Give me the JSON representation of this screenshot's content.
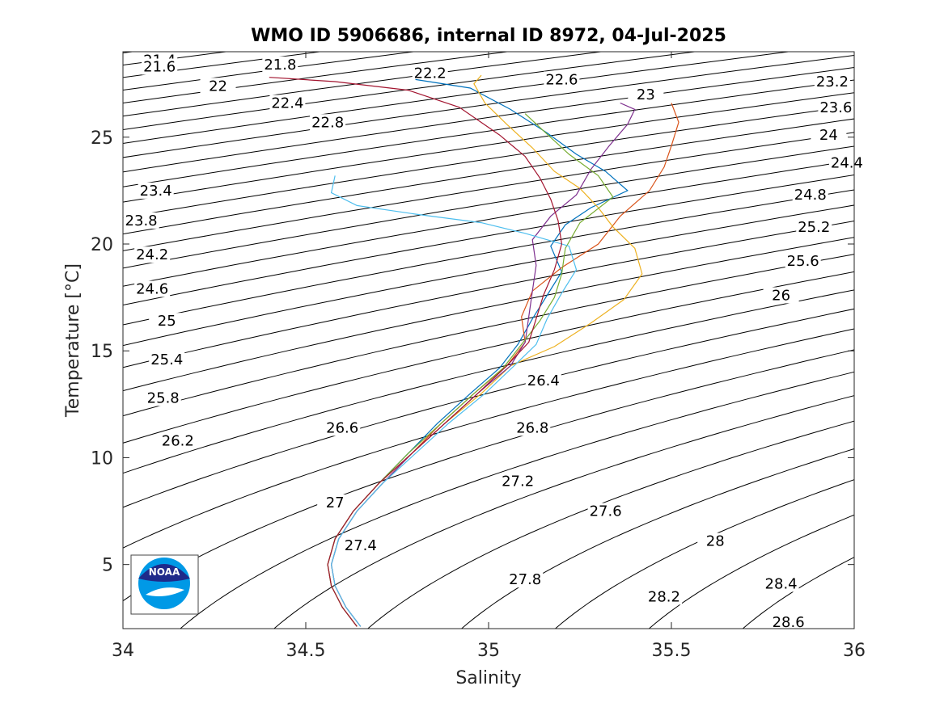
{
  "chart_data": {
    "type": "line",
    "title": "WMO ID 5906686, internal ID 8972, 04-Jul-2025",
    "xlabel": "Salinity",
    "ylabel": "Temperature [°C]",
    "xlim": [
      34,
      36
    ],
    "ylim": [
      2,
      29
    ],
    "xticks": [
      "34",
      "34.5",
      "35",
      "35.5",
      "36"
    ],
    "yticks": [
      "5",
      "10",
      "15",
      "20",
      "25"
    ],
    "ytick_values": [
      5,
      10,
      15,
      20,
      25
    ],
    "xtick_values": [
      34,
      34.5,
      35,
      35.5,
      36
    ],
    "grid": false,
    "density_contours": {
      "levels": [
        21.4,
        21.6,
        21.8,
        22,
        22.2,
        22.4,
        22.6,
        22.8,
        23,
        23.2,
        23.4,
        23.6,
        23.8,
        24,
        24.2,
        24.4,
        24.6,
        24.8,
        25,
        25.2,
        25.4,
        25.6,
        25.8,
        26,
        26.2,
        26.4,
        26.6,
        26.8,
        27,
        27.2,
        27.4,
        27.6,
        27.8,
        28,
        28.2,
        28.4,
        28.6
      ],
      "labels": [
        {
          "text": "21.4",
          "s": 34.1,
          "t": 28.6
        },
        {
          "text": "21.6",
          "s": 34.1,
          "t": 28.3
        },
        {
          "text": "21.8",
          "s": 34.43,
          "t": 28.4
        },
        {
          "text": "22",
          "s": 34.26,
          "t": 27.4
        },
        {
          "text": "22.2",
          "s": 34.84,
          "t": 28.0
        },
        {
          "text": "22.4",
          "s": 34.45,
          "t": 26.6
        },
        {
          "text": "22.6",
          "s": 35.2,
          "t": 27.7
        },
        {
          "text": "22.8",
          "s": 34.56,
          "t": 25.7
        },
        {
          "text": "23",
          "s": 35.43,
          "t": 27.0
        },
        {
          "text": "23.2",
          "s": 35.94,
          "t": 27.6
        },
        {
          "text": "23.4",
          "s": 34.09,
          "t": 22.5
        },
        {
          "text": "23.6",
          "s": 35.95,
          "t": 26.4
        },
        {
          "text": "23.8",
          "s": 34.05,
          "t": 21.1
        },
        {
          "text": "24",
          "s": 35.93,
          "t": 25.1
        },
        {
          "text": "24.2",
          "s": 34.08,
          "t": 19.5
        },
        {
          "text": "24.4",
          "s": 35.98,
          "t": 23.8
        },
        {
          "text": "24.6",
          "s": 34.08,
          "t": 17.9
        },
        {
          "text": "24.8",
          "s": 35.88,
          "t": 22.3
        },
        {
          "text": "25",
          "s": 34.12,
          "t": 16.4
        },
        {
          "text": "25.2",
          "s": 35.89,
          "t": 20.8
        },
        {
          "text": "25.4",
          "s": 34.12,
          "t": 14.6
        },
        {
          "text": "25.6",
          "s": 35.86,
          "t": 19.2
        },
        {
          "text": "25.8",
          "s": 34.11,
          "t": 12.8
        },
        {
          "text": "26",
          "s": 35.8,
          "t": 17.6
        },
        {
          "text": "26.2",
          "s": 34.15,
          "t": 10.8
        },
        {
          "text": "26.4",
          "s": 35.15,
          "t": 13.6
        },
        {
          "text": "26.6",
          "s": 34.6,
          "t": 11.4
        },
        {
          "text": "26.8",
          "s": 35.12,
          "t": 11.4
        },
        {
          "text": "27",
          "s": 34.58,
          "t": 7.9
        },
        {
          "text": "27.2",
          "s": 35.08,
          "t": 8.9
        },
        {
          "text": "27.4",
          "s": 34.65,
          "t": 5.9
        },
        {
          "text": "27.6",
          "s": 35.32,
          "t": 7.5
        },
        {
          "text": "27.8",
          "s": 35.1,
          "t": 4.3
        },
        {
          "text": "28",
          "s": 35.62,
          "t": 6.1
        },
        {
          "text": "28.2",
          "s": 35.48,
          "t": 3.5
        },
        {
          "text": "28.4",
          "s": 35.8,
          "t": 4.1
        },
        {
          "text": "28.6",
          "s": 35.82,
          "t": 2.3
        }
      ]
    },
    "series": [
      {
        "color": "#0072BD",
        "points": [
          [
            34.64,
            2.1
          ],
          [
            34.6,
            3
          ],
          [
            34.57,
            4
          ],
          [
            34.56,
            5
          ],
          [
            34.58,
            6.2
          ],
          [
            34.63,
            7.5
          ],
          [
            34.7,
            8.8
          ],
          [
            34.78,
            10.2
          ],
          [
            34.86,
            11.6
          ],
          [
            34.95,
            13
          ],
          [
            35.03,
            14.2
          ],
          [
            35.08,
            15.3
          ],
          [
            35.12,
            16.5
          ],
          [
            35.16,
            17.6
          ],
          [
            35.2,
            18.7
          ],
          [
            35.17,
            19.9
          ],
          [
            35.21,
            20.9
          ],
          [
            35.28,
            21.7
          ],
          [
            35.38,
            22.5
          ],
          [
            35.32,
            23.4
          ],
          [
            35.24,
            24.2
          ],
          [
            35.16,
            25.2
          ],
          [
            35.06,
            26.3
          ],
          [
            34.95,
            27.3
          ],
          [
            34.8,
            27.7
          ]
        ]
      },
      {
        "color": "#D95319",
        "points": [
          [
            34.65,
            2.1
          ],
          [
            34.61,
            3
          ],
          [
            34.58,
            4
          ],
          [
            34.57,
            5
          ],
          [
            34.59,
            6.2
          ],
          [
            34.64,
            7.5
          ],
          [
            34.71,
            8.8
          ],
          [
            34.79,
            10.2
          ],
          [
            34.87,
            11.6
          ],
          [
            34.96,
            13
          ],
          [
            35.05,
            14.3
          ],
          [
            35.1,
            15.4
          ],
          [
            35.09,
            16.6
          ],
          [
            35.12,
            17.8
          ],
          [
            35.2,
            18.9
          ],
          [
            35.3,
            20
          ],
          [
            35.36,
            21.3
          ],
          [
            35.44,
            22.5
          ],
          [
            35.48,
            23.6
          ],
          [
            35.5,
            24.6
          ],
          [
            35.52,
            25.7
          ],
          [
            35.5,
            26.6
          ]
        ]
      },
      {
        "color": "#EDB120",
        "points": [
          [
            34.64,
            2.1
          ],
          [
            34.6,
            3
          ],
          [
            34.57,
            4
          ],
          [
            34.56,
            5
          ],
          [
            34.58,
            6.2
          ],
          [
            34.63,
            7.5
          ],
          [
            34.7,
            8.8
          ],
          [
            34.79,
            10.2
          ],
          [
            34.88,
            11.6
          ],
          [
            34.98,
            13
          ],
          [
            35.06,
            14.3
          ],
          [
            35.18,
            15.2
          ],
          [
            35.28,
            16.3
          ],
          [
            35.37,
            17.4
          ],
          [
            35.42,
            18.6
          ],
          [
            35.4,
            19.8
          ],
          [
            35.34,
            20.8
          ],
          [
            35.3,
            21.7
          ],
          [
            35.25,
            22.6
          ],
          [
            35.18,
            23.4
          ],
          [
            35.12,
            24.5
          ],
          [
            35.05,
            25.6
          ],
          [
            34.99,
            26.6
          ],
          [
            34.96,
            27.5
          ],
          [
            34.98,
            27.9
          ]
        ]
      },
      {
        "color": "#7E2F8E",
        "points": [
          [
            34.65,
            2.1
          ],
          [
            34.61,
            3
          ],
          [
            34.58,
            4
          ],
          [
            34.57,
            5
          ],
          [
            34.59,
            6.2
          ],
          [
            34.64,
            7.5
          ],
          [
            34.71,
            8.8
          ],
          [
            34.79,
            10.2
          ],
          [
            34.88,
            11.6
          ],
          [
            34.97,
            13
          ],
          [
            35.06,
            14.3
          ],
          [
            35.1,
            15.4
          ],
          [
            35.11,
            16.6
          ],
          [
            35.12,
            17.8
          ],
          [
            35.13,
            19
          ],
          [
            35.12,
            20.2
          ],
          [
            35.17,
            21.3
          ],
          [
            35.24,
            22.3
          ],
          [
            35.28,
            23.5
          ],
          [
            35.33,
            24.6
          ],
          [
            35.38,
            25.6
          ],
          [
            35.4,
            26.3
          ],
          [
            35.36,
            26.6
          ]
        ]
      },
      {
        "color": "#77AC30",
        "points": [
          [
            34.64,
            2.1
          ],
          [
            34.6,
            3
          ],
          [
            34.57,
            4
          ],
          [
            34.56,
            5
          ],
          [
            34.58,
            6.2
          ],
          [
            34.63,
            7.5
          ],
          [
            34.7,
            8.8
          ],
          [
            34.78,
            10.2
          ],
          [
            34.87,
            11.6
          ],
          [
            34.96,
            13
          ],
          [
            35.04,
            14.2
          ],
          [
            35.09,
            15.3
          ],
          [
            35.14,
            16.4
          ],
          [
            35.18,
            17.5
          ],
          [
            35.2,
            18.6
          ],
          [
            35.21,
            19.8
          ],
          [
            35.25,
            21
          ],
          [
            35.34,
            22.2
          ],
          [
            35.3,
            23.2
          ],
          [
            35.22,
            24.2
          ],
          [
            35.15,
            25.3
          ],
          [
            35.1,
            26.1
          ]
        ]
      },
      {
        "color": "#4DBEEE",
        "points": [
          [
            34.65,
            2.1
          ],
          [
            34.61,
            3
          ],
          [
            34.58,
            4
          ],
          [
            34.57,
            5
          ],
          [
            34.59,
            6.2
          ],
          [
            34.64,
            7.5
          ],
          [
            34.71,
            8.8
          ],
          [
            34.8,
            10.2
          ],
          [
            34.89,
            11.6
          ],
          [
            34.99,
            13
          ],
          [
            35.07,
            14.3
          ],
          [
            35.13,
            15.3
          ],
          [
            35.16,
            16.5
          ],
          [
            35.2,
            17.7
          ],
          [
            35.24,
            18.8
          ],
          [
            35.22,
            19.9
          ],
          [
            35.1,
            20.5
          ],
          [
            34.98,
            21
          ],
          [
            34.8,
            21.4
          ],
          [
            34.64,
            21.8
          ],
          [
            34.57,
            22.4
          ],
          [
            34.58,
            23.2
          ]
        ]
      },
      {
        "color": "#A2142F",
        "points": [
          [
            34.64,
            2.1
          ],
          [
            34.6,
            3
          ],
          [
            34.57,
            4
          ],
          [
            34.56,
            5
          ],
          [
            34.58,
            6.2
          ],
          [
            34.63,
            7.5
          ],
          [
            34.7,
            8.8
          ],
          [
            34.79,
            10.2
          ],
          [
            34.88,
            11.6
          ],
          [
            34.97,
            13
          ],
          [
            35.05,
            14.3
          ],
          [
            35.11,
            15.4
          ],
          [
            35.13,
            16.5
          ],
          [
            35.15,
            17.6
          ],
          [
            35.18,
            18.8
          ],
          [
            35.2,
            20
          ],
          [
            35.19,
            21.1
          ],
          [
            35.17,
            22.1
          ],
          [
            35.14,
            23.1
          ],
          [
            35.1,
            24.1
          ],
          [
            35.03,
            25.1
          ],
          [
            34.92,
            26.4
          ],
          [
            34.78,
            27.2
          ],
          [
            34.58,
            27.6
          ],
          [
            34.4,
            27.8
          ]
        ]
      }
    ]
  },
  "logo": {
    "text": "NOAA"
  }
}
